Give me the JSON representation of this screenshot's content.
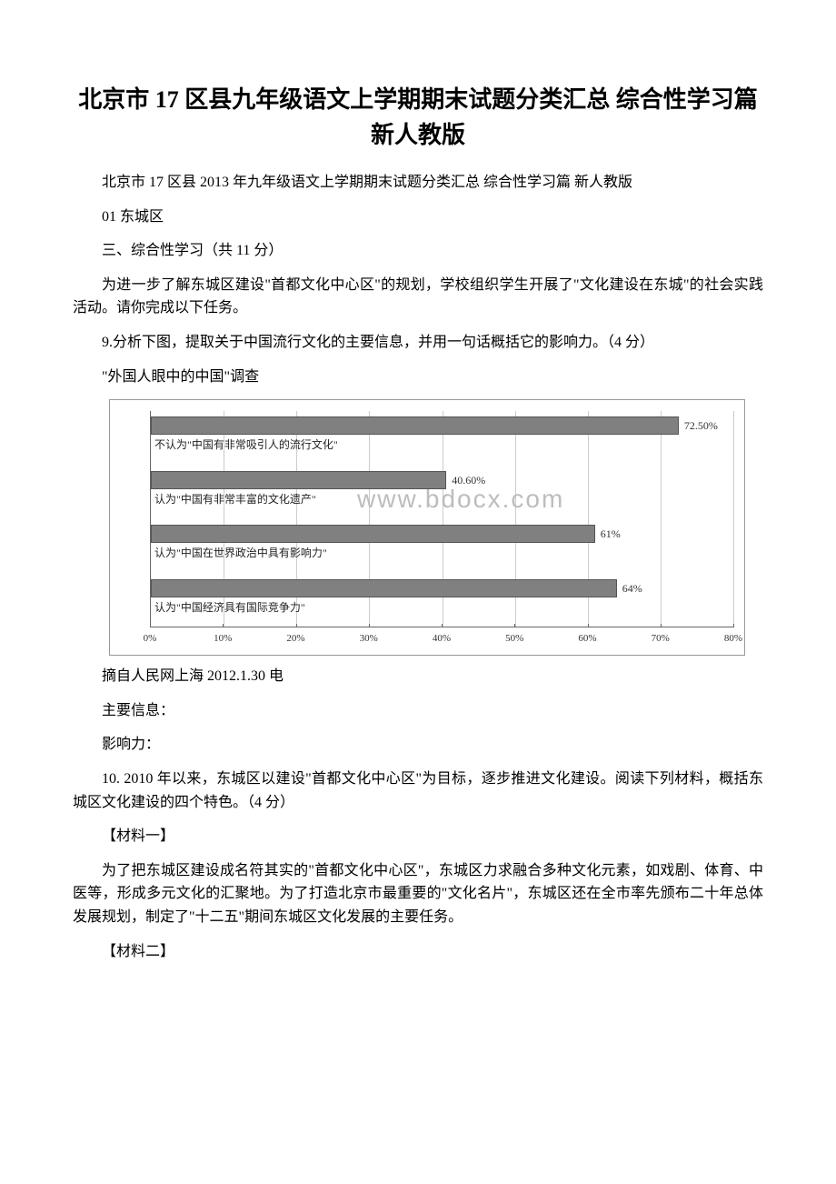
{
  "title": "北京市 17 区县九年级语文上学期期末试题分类汇总 综合性学习篇 新人教版",
  "p1": "北京市 17 区县 2013 年九年级语文上学期期末试题分类汇总 综合性学习篇 新人教版",
  "p2": "01 东城区",
  "p3": "三、综合性学习（共 11 分）",
  "p4": "为进一步了解东城区建设\"首都文化中心区\"的规划，学校组织学生开展了\"文化建设在东城\"的社会实践活动。请你完成以下任务。",
  "p5": "9.分析下图，提取关于中国流行文化的主要信息，并用一句话概括它的影响力。（4 分）",
  "p6": "\"外国人眼中的中国\"调查",
  "p7": "摘自人民网上海 2012.1.30 电",
  "p8": "主要信息：",
  "p9": "影响力：",
  "p10": "10. 2010 年以来，东城区以建设\"首都文化中心区\"为目标，逐步推进文化建设。阅读下列材料，概括东城区文化建设的四个特色。（4 分）",
  "p11": "【材料一】",
  "p12": "为了把东城区建设成名符其实的\"首都文化中心区\"，东城区力求融合多种文化元素，如戏剧、体育、中医等，形成多元文化的汇聚地。为了打造北京市最重要的\"文化名片\"，东城区还在全市率先颁布二十年总体发展规划，制定了\"十二五\"期间东城区文化发展的主要任务。",
  "p13": "【材料二】",
  "chart": {
    "watermark": "www.bdocx.com",
    "x_ticks": [
      "0%",
      "10%",
      "20%",
      "30%",
      "40%",
      "50%",
      "60%",
      "70%",
      "80%"
    ],
    "x_max": 80,
    "bars": [
      {
        "label": "不认为\"中国有非常吸引人的流行文化\"",
        "value": 72.5,
        "value_label": "72.50%"
      },
      {
        "label": "认为\"中国有非常丰富的文化遗产\"",
        "value": 40.6,
        "value_label": "40.60%"
      },
      {
        "label": "认为\"中国在世界政治中具有影响力\"",
        "value": 61,
        "value_label": "61%"
      },
      {
        "label": "认为\"中国经济具有国际竞争力\"",
        "value": 64,
        "value_label": "64%"
      }
    ],
    "bar_color": "#808080",
    "grid_color": "#cccccc",
    "axis_color": "#666666"
  }
}
